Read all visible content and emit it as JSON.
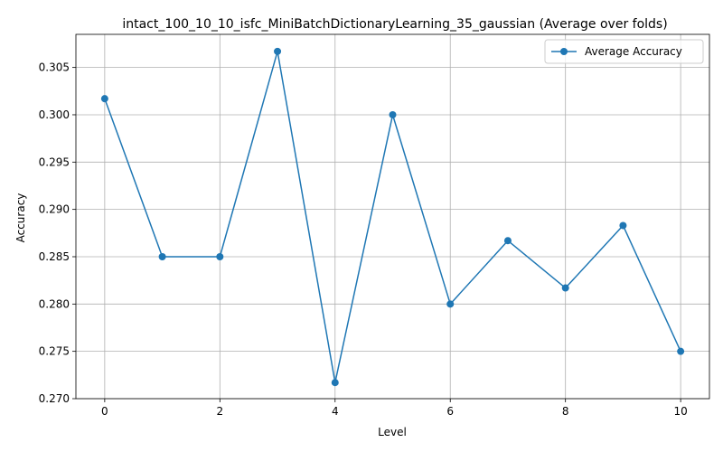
{
  "chart_data": {
    "type": "line",
    "title": "intact_100_10_10_isfc_MiniBatchDictionaryLearning_35_gaussian (Average over folds)",
    "xlabel": "Level",
    "ylabel": "Accuracy",
    "x": [
      0,
      1,
      2,
      3,
      4,
      5,
      6,
      7,
      8,
      9,
      10
    ],
    "series": [
      {
        "name": "Average Accuracy",
        "color": "#1f77b4",
        "marker": "circle",
        "values": [
          0.3017,
          0.285,
          0.285,
          0.3067,
          0.2717,
          0.3,
          0.28,
          0.2867,
          0.2817,
          0.2883,
          0.275
        ]
      }
    ],
    "xlim": [
      -0.5,
      10.5
    ],
    "ylim": [
      0.27,
      0.3085
    ],
    "xticks": [
      0,
      2,
      4,
      6,
      8,
      10
    ],
    "xtick_labels": [
      "0",
      "2",
      "4",
      "6",
      "8",
      "10"
    ],
    "yticks": [
      0.27,
      0.275,
      0.28,
      0.285,
      0.29,
      0.295,
      0.3,
      0.305
    ],
    "ytick_labels": [
      "0.270",
      "0.275",
      "0.280",
      "0.285",
      "0.290",
      "0.295",
      "0.300",
      "0.305"
    ],
    "grid": true,
    "legend_position": "top-right"
  }
}
